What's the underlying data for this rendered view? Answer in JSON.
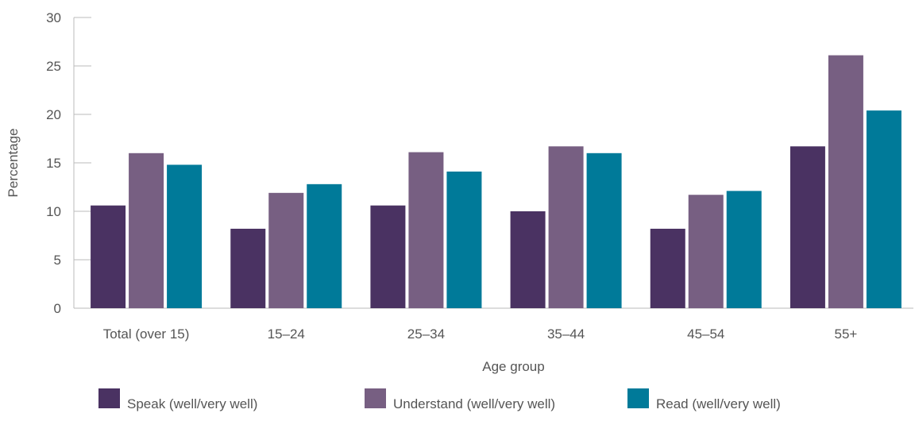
{
  "chart_data": {
    "type": "bar",
    "categories": [
      "Total (over 15)",
      "15–24",
      "25–34",
      "35–44",
      "45–54",
      "55+"
    ],
    "series": [
      {
        "name": "Speak (well/very well)",
        "values": [
          10.6,
          8.2,
          10.6,
          10.0,
          8.2,
          16.7
        ],
        "color": "#4a3262"
      },
      {
        "name": "Understand (well/very well)",
        "values": [
          16.0,
          11.9,
          16.1,
          16.7,
          11.7,
          26.1
        ],
        "color": "#775f82"
      },
      {
        "name": "Read (well/very well)",
        "values": [
          14.8,
          12.8,
          14.1,
          16.0,
          12.1,
          20.4
        ],
        "color": "#007a99"
      }
    ],
    "title": "",
    "xlabel": "Age group",
    "ylabel": "Percentage",
    "ylim": [
      0,
      30
    ],
    "yticks": [
      0,
      5,
      10,
      15,
      20,
      25,
      30
    ],
    "grid": false,
    "legend_position": "bottom"
  }
}
